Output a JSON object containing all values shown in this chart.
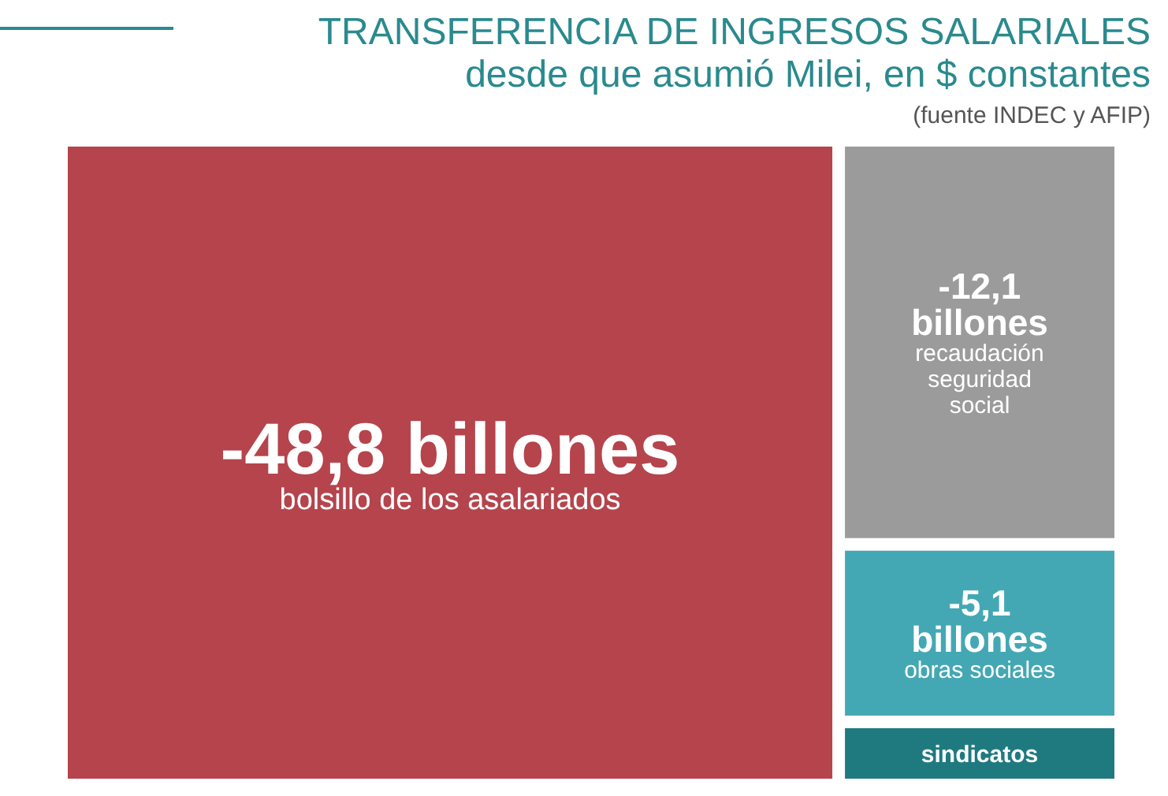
{
  "chart_data": {
    "type": "other",
    "title": "TRANSFERENCIA DE INGRESOS SALARIALES",
    "subtitle": "desde que asumió Milei, en $ constantes",
    "annotations": [
      "(fuente INDEC y AFIP)"
    ],
    "categories": [
      "bolsillo de los asalariados",
      "recaudación seguridad social",
      "obras sociales",
      "sindicatos"
    ],
    "values": [
      -48.8,
      -12.1,
      -5.1,
      null
    ],
    "value_labels": [
      "-48,8 billones",
      "-12,1 billones",
      "-5,1 billones",
      null
    ],
    "colors": [
      "#b5444c",
      "#9b9b9b",
      "#44a8b4",
      "#1f7a80"
    ]
  }
}
